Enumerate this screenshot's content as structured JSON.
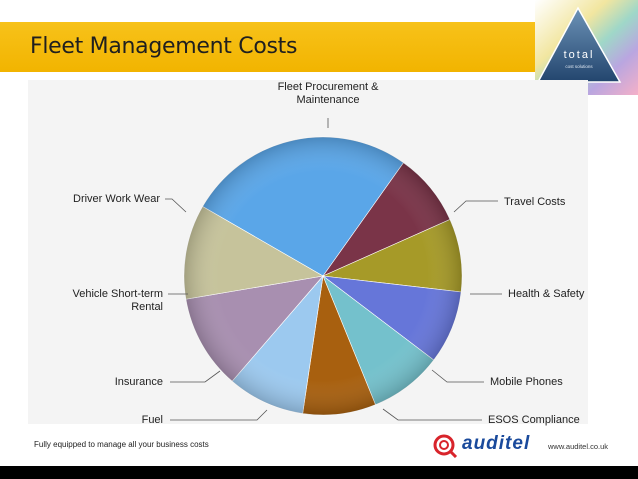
{
  "slide": {
    "title": "Fleet Management Costs",
    "logo_text": "total",
    "logo_subtext": "cost solutions",
    "footer_tagline": "Fully equipped to manage all your business costs",
    "brand_name": "auditel",
    "brand_url": "www.auditel.co.uk"
  },
  "colors": {
    "header": "#f7c21a",
    "brand": "#1a4a9c",
    "brand_mark": "#d8242b"
  },
  "chart_data": {
    "type": "pie",
    "title": "",
    "slices": [
      {
        "label": "Fleet Procurement & Maintenance",
        "lines": [
          "Fleet Procurement &",
          "Maintenance"
        ],
        "value": 26.5,
        "color": "#5aa6e8"
      },
      {
        "label": "Travel Costs",
        "lines": [
          "Travel Costs"
        ],
        "value": 8.5,
        "color": "#7a3448"
      },
      {
        "label": "Health & Safety",
        "lines": [
          "Health & Safety"
        ],
        "value": 8.5,
        "color": "#a69a28"
      },
      {
        "label": "Mobile Phones",
        "lines": [
          "Mobile Phones"
        ],
        "value": 8.5,
        "color": "#6676d9"
      },
      {
        "label": "ESOS Compliance",
        "lines": [
          "ESOS Compliance"
        ],
        "value": 8.5,
        "color": "#74c1cc"
      },
      {
        "label": "Fuel",
        "lines": [
          "Fuel"
        ],
        "value": 8.5,
        "color": "#a8600f"
      },
      {
        "label": "Insurance",
        "lines": [
          "Insurance"
        ],
        "value": 9.0,
        "color": "#9cc9ef"
      },
      {
        "label": "Vehicle Short-term Rental",
        "lines": [
          "Vehicle Short-term",
          "Rental"
        ],
        "value": 11.0,
        "color": "#a88fb0"
      },
      {
        "label": "Driver Work Wear",
        "lines": [
          "Driver Work Wear"
        ],
        "value": 11.0,
        "color": "#c6c39b"
      }
    ]
  }
}
